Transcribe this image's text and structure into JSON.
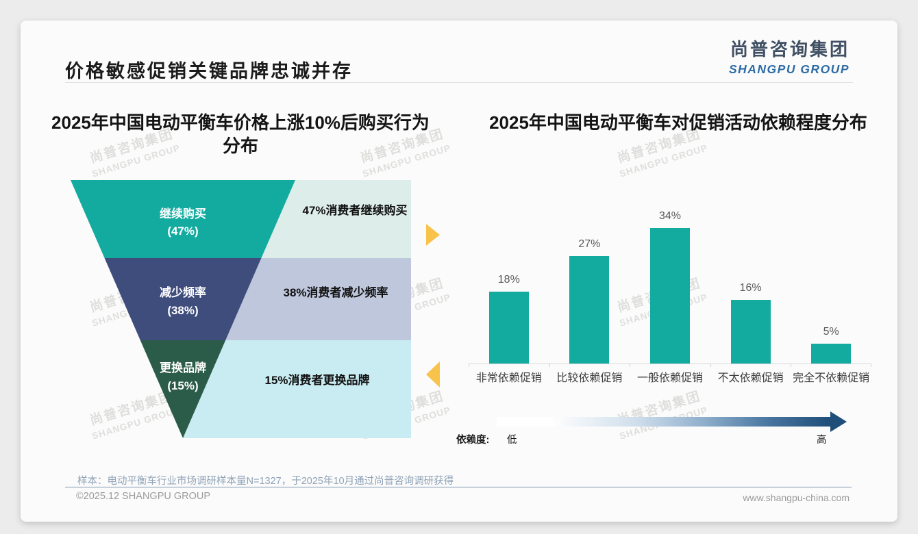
{
  "header": {
    "title": "价格敏感促销关键品牌忠诚并存",
    "logo_cn": "尚普咨询集团",
    "logo_en": "SHANGPU GROUP"
  },
  "watermark": {
    "cn": "尚普咨询集团",
    "en": "SHANGPU GROUP"
  },
  "chart_data": [
    {
      "type": "funnel",
      "title": "2025年中国电动平衡车价格上涨10%后购买行为分布",
      "categories": [
        "继续购买",
        "减少频率",
        "更换品牌"
      ],
      "values": [
        47,
        38,
        15
      ],
      "value_labels": [
        "(47%)",
        "(38%)",
        "(15%)"
      ],
      "annotations": [
        "47%消费者继续购买",
        "38%消费者减少频率",
        "15%消费者更换品牌"
      ],
      "segment_colors": [
        "#13aba0",
        "#3e4d7c",
        "#2b5b49"
      ],
      "band_colors": [
        "#ddeeea",
        "#bfc7dd",
        "#c9ecf2"
      ],
      "accent_arrow_color": "#f7c34b"
    },
    {
      "type": "bar",
      "title": "2025年中国电动平衡车对促销活动依赖程度分布",
      "categories": [
        "非常依赖促销",
        "比较依赖促销",
        "一般依赖促销",
        "不太依赖促销",
        "完全不依赖促销"
      ],
      "values": [
        18,
        27,
        34,
        16,
        5
      ],
      "data_labels": [
        "18%",
        "27%",
        "34%",
        "16%",
        "5%"
      ],
      "bar_color": "#13aba0",
      "ylim": [
        0,
        40
      ],
      "grid": false,
      "axis_note": {
        "label": "依赖度:",
        "low": "低",
        "high": "高",
        "gradient_start": "#ffffff",
        "gradient_end": "#1f4e79"
      }
    }
  ],
  "footnote": "样本：电动平衡车行业市场调研样本量N=1327，于2025年10月通过尚普咨询调研获得",
  "footer": {
    "copyright": "©2025.12 SHANGPU GROUP",
    "website": "www.shangpu-china.com"
  }
}
